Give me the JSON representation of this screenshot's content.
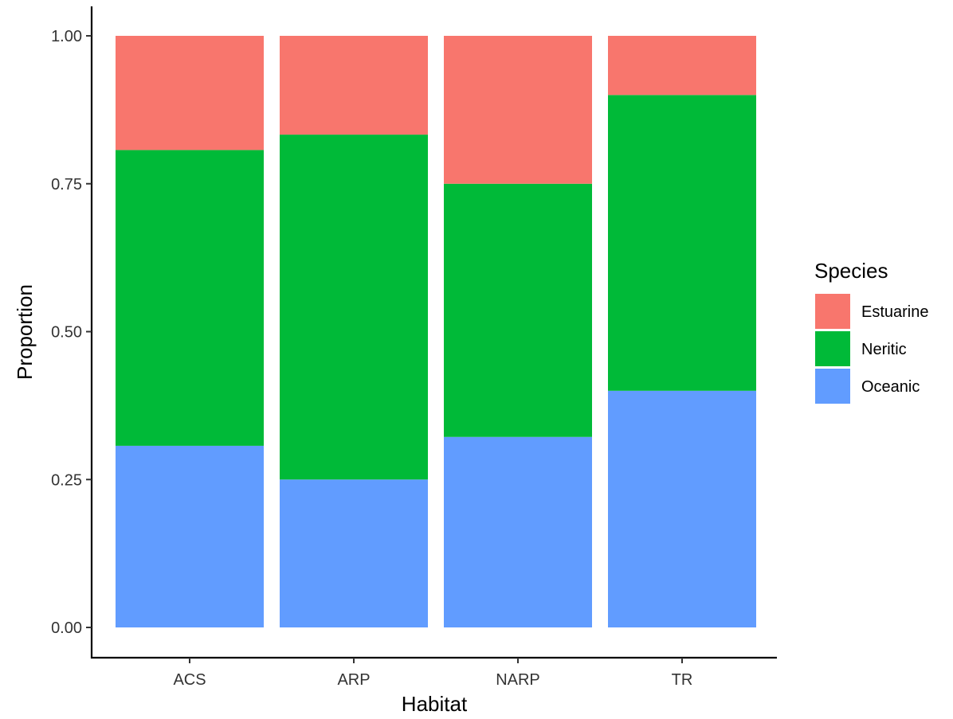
{
  "chart_data": {
    "type": "bar",
    "stacked": true,
    "xlabel": "Habitat",
    "ylabel": "Proportion",
    "categories": [
      "ACS",
      "ARP",
      "NARP",
      "TR"
    ],
    "ylim": [
      0,
      1
    ],
    "yticks": [
      "0.00",
      "0.25",
      "0.50",
      "0.75",
      "1.00"
    ],
    "legend": {
      "title": "Species",
      "position": "right"
    },
    "grid": false,
    "series": [
      {
        "name": "Estuarine",
        "color": "#F8766D",
        "values": [
          0.193,
          0.167,
          0.25,
          0.1
        ]
      },
      {
        "name": "Neritic",
        "color": "#00BA38",
        "values": [
          0.5,
          0.583,
          0.428,
          0.5
        ]
      },
      {
        "name": "Oceanic",
        "color": "#619CFF",
        "values": [
          0.307,
          0.25,
          0.322,
          0.4
        ]
      }
    ]
  }
}
